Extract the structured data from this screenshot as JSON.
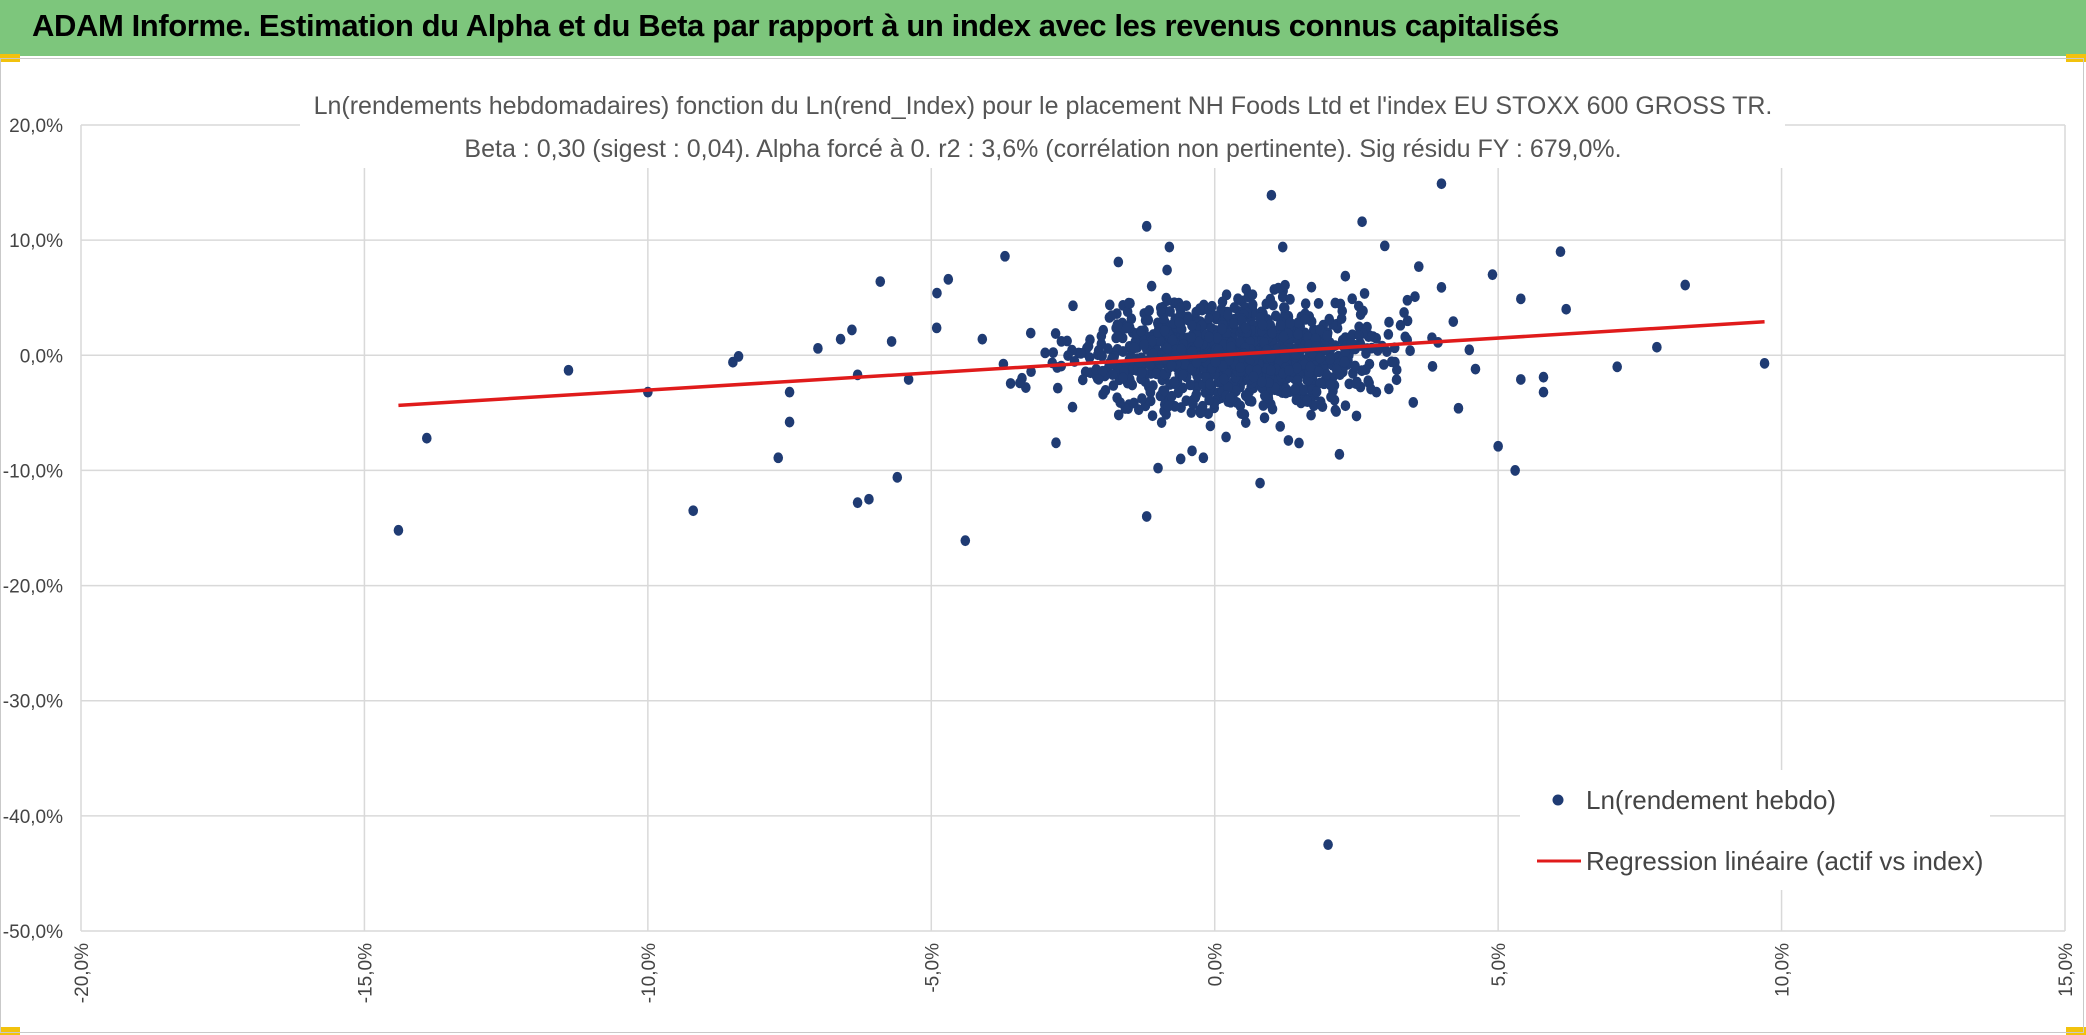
{
  "banner": {
    "title": "ADAM Informe. Estimation du Alpha et du Beta par rapport à un index avec les revenus connus capitalisés"
  },
  "colors": {
    "banner": "#7dc67c",
    "points": "#1f3b73",
    "regression": "#e01b1b",
    "grid": "#d9d9d9"
  },
  "chart_data": {
    "type": "scatter",
    "title": "Ln(rendements hebdomadaires) fonction du Ln(rend_Index) pour le placement NH Foods Ltd et l'index EU STOXX 600 GROSS TR.",
    "subtitle": "Beta : 0,30 (sigest : 0,04). Alpha forcé à 0. r2 : 3,6% (corrélation non pertinente). Sig résidu FY : 679,0%.",
    "xlim": [
      -20,
      15
    ],
    "ylim": [
      -50,
      20
    ],
    "x_ticks": [
      "-20,0%",
      "-15,0%",
      "-10,0%",
      "-5,0%",
      "0,0%",
      "5,0%",
      "10,0%",
      "15,0%"
    ],
    "y_ticks": [
      "20,0%",
      "10,0%",
      "0,0%",
      "-10,0%",
      "-20,0%",
      "-30,0%",
      "-40,0%",
      "-50,0%"
    ],
    "grid": true,
    "legend_position": "bottom-right",
    "series": [
      {
        "name": "Ln(rendement hebdo)",
        "kind": "scatter",
        "points": [
          [
            -14.4,
            -15.2
          ],
          [
            -13.9,
            -7.2
          ],
          [
            -11.4,
            -1.3
          ],
          [
            -10.0,
            -3.2
          ],
          [
            -9.2,
            -13.5
          ],
          [
            -8.5,
            -0.6
          ],
          [
            -8.4,
            -0.1
          ],
          [
            -7.7,
            -8.9
          ],
          [
            -7.5,
            -5.8
          ],
          [
            -7.5,
            -3.2
          ],
          [
            -7.0,
            0.6
          ],
          [
            -6.6,
            1.4
          ],
          [
            -6.4,
            2.2
          ],
          [
            -6.3,
            -12.8
          ],
          [
            -6.3,
            -1.7
          ],
          [
            -6.1,
            -12.5
          ],
          [
            -5.9,
            6.4
          ],
          [
            -5.6,
            -10.6
          ],
          [
            -5.7,
            1.2
          ],
          [
            -5.4,
            -2.1
          ],
          [
            -4.9,
            5.4
          ],
          [
            -4.7,
            6.6
          ],
          [
            -4.4,
            -16.1
          ],
          [
            -4.1,
            1.4
          ],
          [
            -3.7,
            8.6
          ],
          [
            -3.4,
            -2.0
          ],
          [
            -2.8,
            -7.6
          ],
          [
            -2.5,
            4.3
          ],
          [
            -2.4,
            0.2
          ],
          [
            -2.0,
            1.0
          ],
          [
            -1.7,
            8.1
          ],
          [
            -1.2,
            -14.0
          ],
          [
            -1.2,
            11.2
          ],
          [
            -1.0,
            -9.8
          ],
          [
            -0.8,
            9.4
          ],
          [
            -0.6,
            -9.0
          ],
          [
            -0.4,
            -8.3
          ],
          [
            -0.2,
            -8.9
          ],
          [
            0.2,
            -7.1
          ],
          [
            0.8,
            -11.1
          ],
          [
            1.0,
            13.9
          ],
          [
            1.2,
            9.4
          ],
          [
            1.3,
            -7.4
          ],
          [
            1.7,
            -5.2
          ],
          [
            2.2,
            -8.6
          ],
          [
            2.6,
            11.6
          ],
          [
            3.0,
            9.5
          ],
          [
            3.6,
            7.7
          ],
          [
            4.0,
            14.9
          ],
          [
            4.0,
            5.9
          ],
          [
            4.3,
            -4.6
          ],
          [
            4.6,
            -1.2
          ],
          [
            4.9,
            7.0
          ],
          [
            5.0,
            -7.9
          ],
          [
            5.3,
            -10.0
          ],
          [
            5.4,
            4.9
          ],
          [
            5.4,
            -2.1
          ],
          [
            5.8,
            -1.9
          ],
          [
            5.8,
            -3.2
          ],
          [
            6.1,
            9.0
          ],
          [
            6.2,
            4.0
          ],
          [
            7.1,
            -1.0
          ],
          [
            7.8,
            0.7
          ],
          [
            8.3,
            6.1
          ],
          [
            9.7,
            -0.7
          ],
          [
            2.0,
            -42.5
          ]
        ]
      },
      {
        "name": "Regression linéaire (actif vs index)",
        "kind": "line",
        "points": [
          [
            -14.4,
            -4.35
          ],
          [
            9.7,
            2.91
          ]
        ]
      }
    ]
  }
}
